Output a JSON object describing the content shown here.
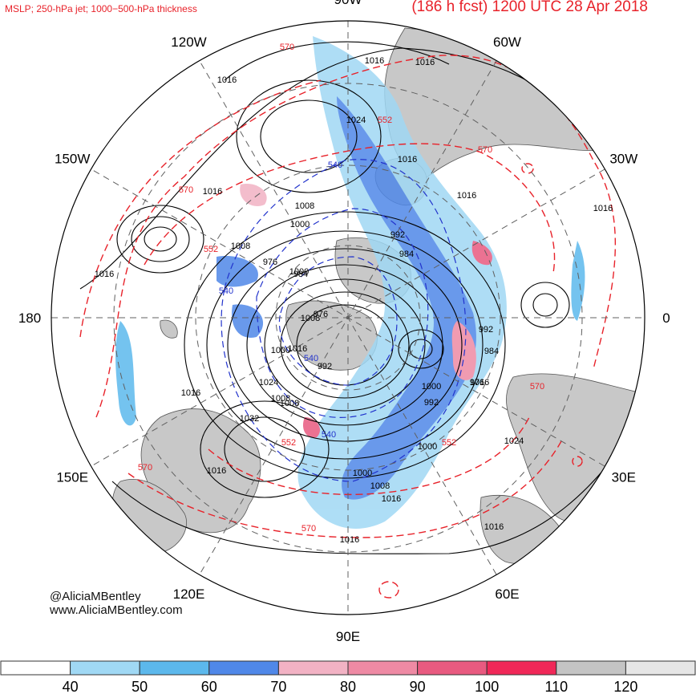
{
  "header": {
    "fields": "MSLP; 250-hPa jet; 1000−500-hPa thickness",
    "title": "(186 h fcst) 1200 UTC 28 Apr 2018"
  },
  "credits": {
    "handle": "@AliciaMBentley",
    "website": "www.AliciaMBentley.com"
  },
  "longitude_labels": [
    {
      "text": "90W",
      "bearing": 0
    },
    {
      "text": "60W",
      "bearing": 30
    },
    {
      "text": "30W",
      "bearing": 60
    },
    {
      "text": "0",
      "bearing": 90
    },
    {
      "text": "30E",
      "bearing": 120
    },
    {
      "text": "60E",
      "bearing": 150
    },
    {
      "text": "90E",
      "bearing": 180
    },
    {
      "text": "120E",
      "bearing": 210
    },
    {
      "text": "150E",
      "bearing": 240
    },
    {
      "text": "180",
      "bearing": 270
    },
    {
      "text": "150W",
      "bearing": 300
    },
    {
      "text": "120W",
      "bearing": 330
    }
  ],
  "isobar_labels": [
    "1016",
    "1016",
    "1016",
    "1024",
    "1016",
    "1008",
    "1000",
    "992",
    "984",
    "976",
    "1000",
    "1008",
    "1016",
    "1024",
    "1032",
    "1008",
    "1000",
    "992",
    "984",
    "976",
    "1000",
    "1008",
    "1016",
    "1024",
    "1016",
    "1016",
    "1016",
    "1016",
    "1016",
    "992",
    "984",
    "976",
    "1008",
    "1016",
    "1000",
    "1008",
    "992",
    "1000",
    "1016",
    "1016",
    "1016"
  ],
  "thickness_labels_red": [
    "570",
    "552",
    "570",
    "552",
    "570",
    "570",
    "570",
    "552",
    "552",
    "570"
  ],
  "thickness_labels_blue": [
    "540",
    "540",
    "540",
    "540"
  ],
  "colorbar": {
    "unit_values": [
      "40",
      "50",
      "60",
      "70",
      "80",
      "90",
      "100",
      "110",
      "120"
    ],
    "colors": [
      "#ffffff",
      "#a0d8f4",
      "#5cb8ec",
      "#5088e8",
      "#f2b2c4",
      "#ee8aa4",
      "#e85a80",
      "#f02858",
      "#c4c4c4",
      "#e6e6e6"
    ]
  },
  "map_colors": {
    "land": "#c8c8c8",
    "mslp_contour": "#000000",
    "thickness_warm": "#e8222a",
    "thickness_cold": "#2233cc",
    "grid": "#606060"
  }
}
